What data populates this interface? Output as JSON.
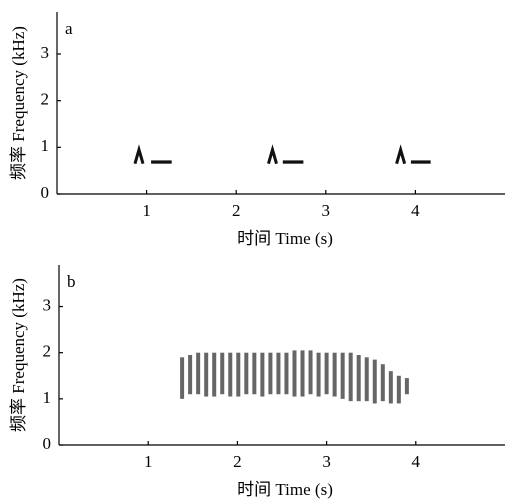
{
  "chart_data": [
    {
      "type": "spectrogram",
      "panel_label": "a",
      "ylabel": "频率 Frequency (kHz)",
      "xlabel": "时间 Time (s)",
      "xlim": [
        0,
        5
      ],
      "ylim": [
        0,
        3.9
      ],
      "xticks": [
        1,
        2,
        3,
        4
      ],
      "yticks": [
        0,
        1,
        2,
        3
      ],
      "color": "#111111",
      "syllables": [
        {
          "shape": "arch",
          "start": 0.87,
          "end": 0.96,
          "low": 0.65,
          "high": 0.95
        },
        {
          "shape": "bar",
          "start": 1.05,
          "end": 1.28,
          "low": 0.65,
          "high": 0.72
        },
        {
          "shape": "arch",
          "start": 2.36,
          "end": 2.45,
          "low": 0.65,
          "high": 0.95
        },
        {
          "shape": "bar",
          "start": 2.52,
          "end": 2.75,
          "low": 0.65,
          "high": 0.72
        },
        {
          "shape": "arch",
          "start": 3.79,
          "end": 3.88,
          "low": 0.65,
          "high": 0.95
        },
        {
          "shape": "bar",
          "start": 3.95,
          "end": 4.17,
          "low": 0.65,
          "high": 0.72
        }
      ]
    },
    {
      "type": "spectrogram",
      "panel_label": "b",
      "ylabel": "频率 Frequency (kHz)",
      "xlabel": "时间 Time (s)",
      "xlim": [
        0,
        5
      ],
      "ylim": [
        0,
        3.9
      ],
      "xticks": [
        1,
        2,
        3,
        4
      ],
      "yticks": [
        0,
        1,
        2,
        3
      ],
      "color": "#333333",
      "pulses": {
        "time": [
          1.38,
          1.47,
          1.56,
          1.65,
          1.74,
          1.83,
          1.92,
          2.01,
          2.1,
          2.19,
          2.28,
          2.37,
          2.46,
          2.55,
          2.64,
          2.73,
          2.82,
          2.91,
          3.0,
          3.09,
          3.18,
          3.27,
          3.36,
          3.45,
          3.54,
          3.63,
          3.72,
          3.81,
          3.9
        ],
        "low": [
          1.0,
          1.1,
          1.1,
          1.05,
          1.05,
          1.1,
          1.05,
          1.05,
          1.1,
          1.1,
          1.05,
          1.1,
          1.1,
          1.1,
          1.05,
          1.05,
          1.1,
          1.05,
          1.1,
          1.05,
          1.0,
          0.95,
          0.95,
          0.95,
          0.9,
          0.95,
          0.9,
          0.9,
          1.1
        ],
        "high": [
          1.9,
          1.95,
          2.0,
          2.0,
          2.0,
          2.0,
          2.0,
          2.0,
          2.0,
          2.0,
          2.0,
          2.0,
          2.0,
          2.0,
          2.05,
          2.05,
          2.05,
          2.0,
          2.0,
          2.0,
          2.0,
          2.0,
          1.95,
          1.9,
          1.85,
          1.75,
          1.6,
          1.5,
          1.45
        ]
      }
    }
  ]
}
